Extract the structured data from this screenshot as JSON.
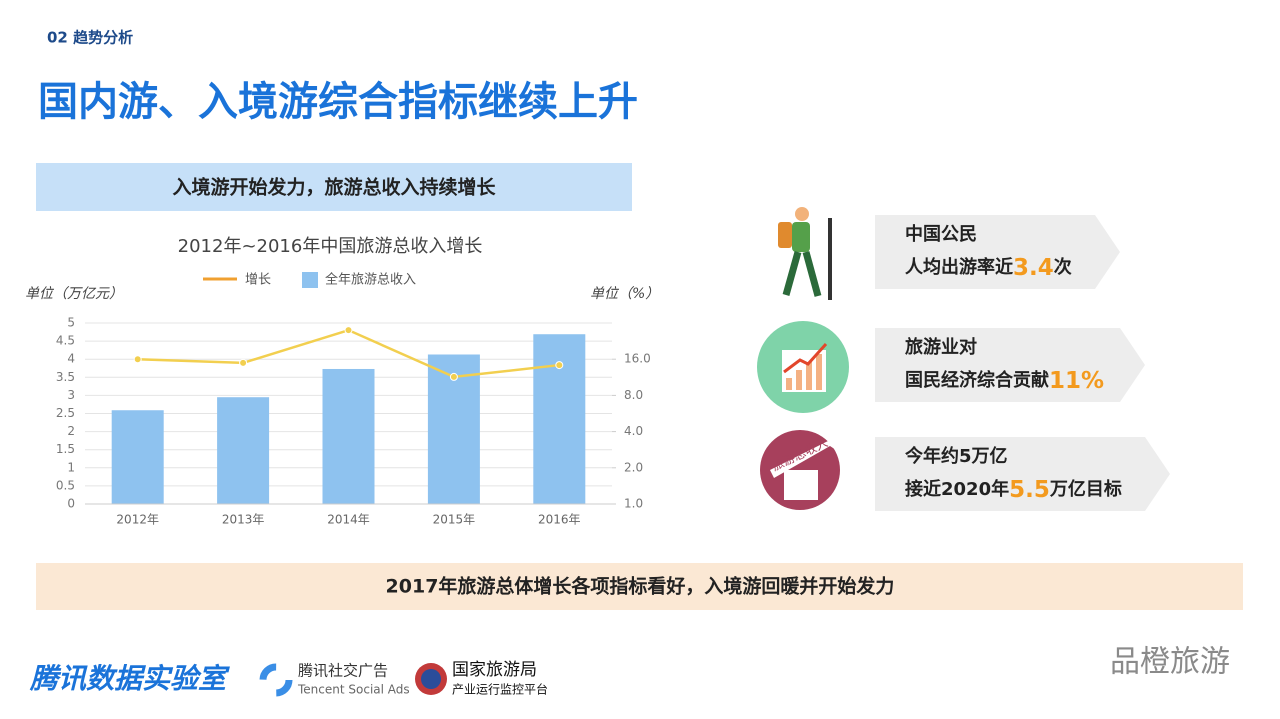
{
  "header": {
    "section": "02 趋势分析",
    "title": "国内游、入境游综合指标继续上升",
    "banner": "入境游开始发力，旅游总收入持续增长"
  },
  "chart_data": {
    "type": "bar",
    "title": "2012年~2016年中国旅游总收入增长",
    "y_label": "单位（万亿元）",
    "y2_label": "单位（%）",
    "categories": [
      "2012年",
      "2013年",
      "2014年",
      "2015年",
      "2016年"
    ],
    "series": [
      {
        "name": "增长",
        "type": "line",
        "color": "#f2cf4f",
        "axis": "y2",
        "values": [
          16.0,
          14.9,
          27.9,
          11.4,
          14.3
        ]
      },
      {
        "name": "全年旅游总收入",
        "type": "bar",
        "color": "#8ec2ef",
        "values": [
          2.59,
          2.95,
          3.73,
          4.13,
          4.69
        ]
      }
    ],
    "ylim": [
      0,
      5
    ],
    "yticks": [
      0,
      0.5,
      1,
      1.5,
      2,
      2.5,
      3,
      3.5,
      4,
      4.5,
      5
    ],
    "y2lim": [
      1,
      32
    ],
    "y2scale": "log",
    "y2ticks": [
      {
        "value": 1,
        "label": "1.0"
      },
      {
        "value": 2,
        "label": "2.0"
      },
      {
        "value": 4,
        "label": "4.0"
      },
      {
        "value": 8,
        "label": "8.0"
      },
      {
        "value": 16,
        "label": "16.0"
      }
    ],
    "grid": true,
    "legend": "top"
  },
  "cards": [
    {
      "line1": "中国公民",
      "line2": [
        "人均出游率近",
        "3.4",
        "次"
      ]
    },
    {
      "line1": "旅游业对",
      "line2": [
        "国民经济综合贡献",
        "11%"
      ]
    },
    {
      "line1": "今年约5万亿",
      "line2": [
        "接近2020年",
        "5.5",
        "万亿目标"
      ]
    }
  ],
  "icon_text": "旅游总收入",
  "conclusion": "2017年旅游总体增长各项指标看好，入境游回暖并开始发力",
  "footer": {
    "lab": "腾讯数据实验室",
    "ads_cn": "腾讯社交广告",
    "ads_en": "Tencent Social Ads",
    "cnta": "国家旅游局",
    "cnta_sub": "产业运行监控平台",
    "watermark": "品橙旅游"
  }
}
